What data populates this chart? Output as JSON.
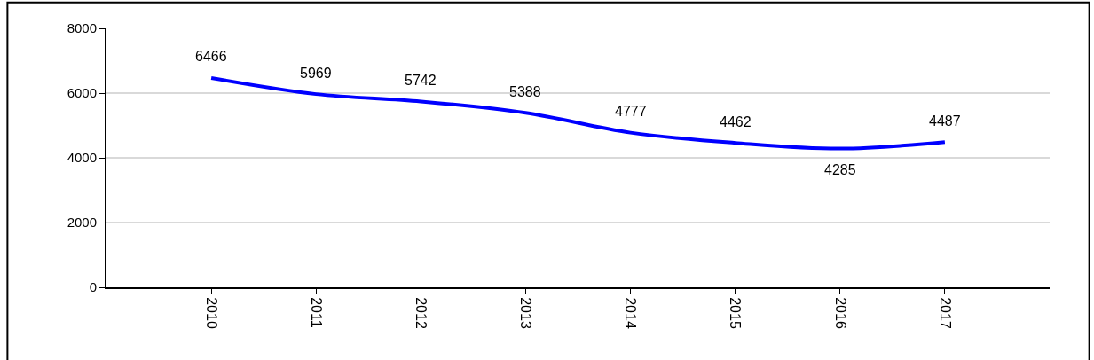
{
  "chart_data": {
    "type": "line",
    "categories": [
      "2010",
      "2011",
      "2012",
      "2013",
      "2014",
      "2015",
      "2016",
      "2017"
    ],
    "series": [
      {
        "color": "#0000ff",
        "values": [
          6466,
          5969,
          5742,
          5388,
          4777,
          4462,
          4285,
          4487
        ]
      }
    ],
    "ylim": [
      0,
      8000
    ],
    "yticks": [
      0,
      2000,
      4000,
      6000,
      8000
    ],
    "grid": "y",
    "data_labels": true,
    "marker": "none",
    "line_style": "solid"
  }
}
